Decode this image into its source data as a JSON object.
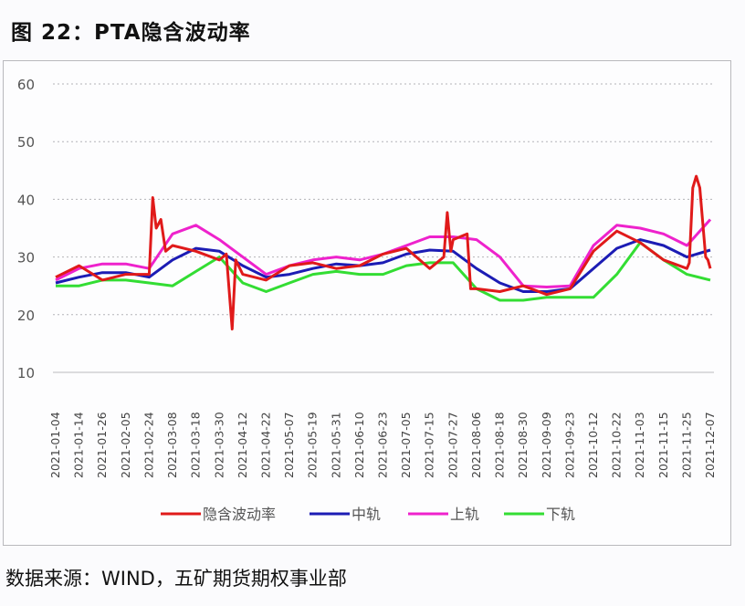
{
  "header": {
    "title": "图 22：PTA隐含波动率"
  },
  "footer": {
    "source": "数据来源：WIND，五矿期货期权事业部"
  },
  "colors": {
    "iv": "#e01a1a",
    "mid": "#1c1cb4",
    "upper": "#ee22cc",
    "lower": "#33dd33",
    "grid": "#bbbbbb",
    "axis": "#cccccc"
  },
  "chart_data": {
    "type": "line",
    "title": "PTA隐含波动率",
    "xlabel": "",
    "ylabel": "",
    "ylim": [
      10,
      60
    ],
    "yticks": [
      10,
      20,
      30,
      40,
      50,
      60
    ],
    "grid": true,
    "legend_position": "bottom",
    "categories": [
      "2021-01-04",
      "2021-01-14",
      "2021-01-26",
      "2021-02-05",
      "2021-02-24",
      "2021-03-08",
      "2021-03-18",
      "2021-03-30",
      "2021-04-12",
      "2021-04-22",
      "2021-05-07",
      "2021-05-19",
      "2021-05-31",
      "2021-06-10",
      "2021-06-23",
      "2021-07-05",
      "2021-07-15",
      "2021-07-27",
      "2021-08-06",
      "2021-08-18",
      "2021-08-30",
      "2021-09-09",
      "2021-09-23",
      "2021-10-12",
      "2021-10-22",
      "2021-11-03",
      "2021-11-15",
      "2021-11-25",
      "2021-12-07"
    ],
    "series": [
      {
        "name": "隐含波动率",
        "color": "#e01a1a",
        "values": [
          26.5,
          28.5,
          26.0,
          27.0,
          27.0,
          32.0,
          31.0,
          29.5,
          27.0,
          26.0,
          28.5,
          29.0,
          28.0,
          28.5,
          30.5,
          31.5,
          28.0,
          33.0,
          24.5,
          24.0,
          25.0,
          23.5,
          24.5,
          31.0,
          34.5,
          32.5,
          29.5,
          28.0,
          28.0
        ],
        "annotations": {
          "peak_feb": 40.3,
          "trough_apr": 17.5,
          "spike_jul": 37.7,
          "peak_dec": 44.0
        }
      },
      {
        "name": "中轨",
        "color": "#1c1cb4",
        "values": [
          25.5,
          26.5,
          27.3,
          27.3,
          26.5,
          29.5,
          31.5,
          31.0,
          28.5,
          26.5,
          27.0,
          28.0,
          28.8,
          28.5,
          29.0,
          30.5,
          31.2,
          31.0,
          28.0,
          25.5,
          24.0,
          24.0,
          24.5,
          28.0,
          31.5,
          33.0,
          32.0,
          30.0,
          31.2
        ]
      },
      {
        "name": "上轨",
        "color": "#ee22cc",
        "values": [
          26.0,
          28.0,
          28.8,
          28.8,
          28.0,
          34.0,
          35.5,
          33.0,
          30.0,
          27.0,
          28.5,
          29.5,
          30.0,
          29.5,
          30.5,
          32.0,
          33.5,
          33.5,
          33.0,
          30.0,
          25.0,
          24.8,
          25.0,
          32.0,
          35.5,
          35.0,
          34.0,
          32.0,
          36.5
        ]
      },
      {
        "name": "下轨",
        "color": "#33dd33",
        "values": [
          25.0,
          25.0,
          26.0,
          26.0,
          25.5,
          25.0,
          27.5,
          30.0,
          25.5,
          24.0,
          25.5,
          27.0,
          27.5,
          27.0,
          27.0,
          28.5,
          29.0,
          29.0,
          24.5,
          22.5,
          22.5,
          23.0,
          23.0,
          23.0,
          27.0,
          32.5,
          29.5,
          27.0,
          26.0
        ]
      }
    ]
  },
  "legend": {
    "items": [
      "隐含波动率",
      "中轨",
      "上轨",
      "下轨"
    ]
  }
}
